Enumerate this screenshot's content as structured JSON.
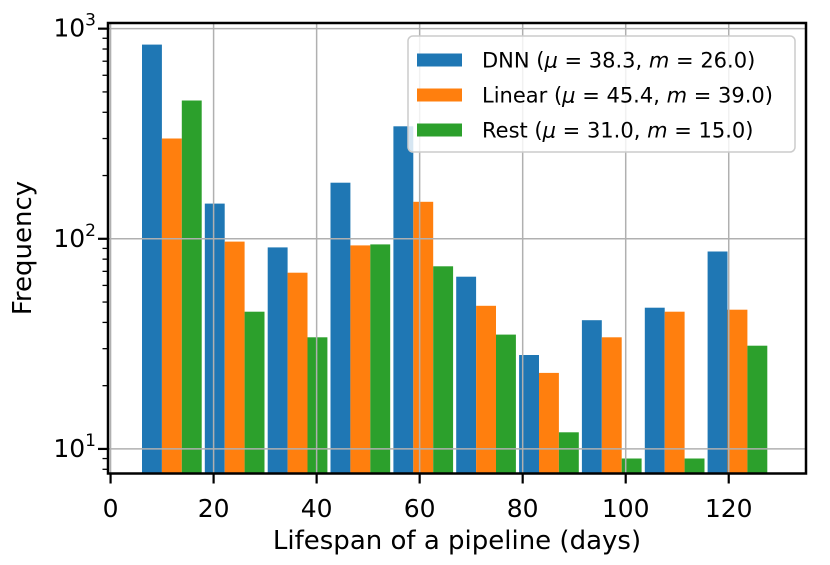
{
  "chart_data": {
    "type": "bar",
    "subtype": "grouped-histogram",
    "title": "",
    "xlabel": "Lifespan of a pipeline (days)",
    "ylabel": "Frequency",
    "x_scale": "linear",
    "y_scale": "log",
    "xlim": [
      -0.5,
      135.0
    ],
    "ylim": [
      7.64,
      1064
    ],
    "x_ticks": [
      0,
      20,
      40,
      60,
      80,
      100,
      120
    ],
    "y_major_ticks": [
      10,
      100,
      1000
    ],
    "y_tick_base": "10",
    "y_tick_exponents": [
      "1",
      "2",
      "3"
    ],
    "grid": true,
    "grid_color": "#b0b0b0",
    "legend_position": "upper right",
    "bin_edges": [
      6.1,
      18.3,
      30.5,
      42.7,
      54.9,
      67.1,
      79.3,
      91.5,
      103.7,
      115.9,
      128.1
    ],
    "series": [
      {
        "name": "DNN",
        "mean": "38.3",
        "median": "26.0",
        "color": "#1f77b4",
        "legend_label": "DNN (μ = 38.3, m = 26.0)",
        "values": [
          840,
          147,
          91,
          185,
          343,
          66,
          28,
          41,
          47,
          87
        ]
      },
      {
        "name": "Linear",
        "mean": "45.4",
        "median": "39.0",
        "color": "#ff7f0e",
        "legend_label": "Linear (μ = 45.4, m = 39.0)",
        "values": [
          300,
          97,
          69,
          93,
          150,
          48,
          23,
          34,
          45,
          46
        ]
      },
      {
        "name": "Rest",
        "mean": "31.0",
        "median": "15.0",
        "color": "#2ca02c",
        "legend_label": "Rest (μ = 31.0, m = 15.0)",
        "values": [
          455,
          45,
          34,
          94,
          74,
          35,
          12,
          9,
          9,
          31
        ]
      }
    ]
  }
}
